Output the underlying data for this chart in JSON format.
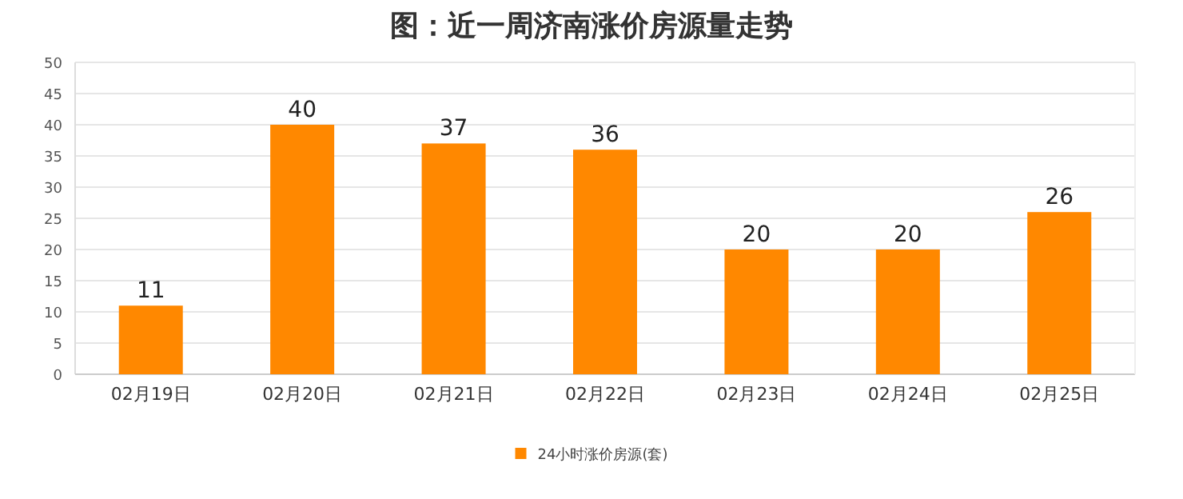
{
  "chart_data": {
    "type": "bar",
    "title": "图：近一周济南涨价房源量走势",
    "categories": [
      "02月19日",
      "02月20日",
      "02月21日",
      "02月22日",
      "02月23日",
      "02月24日",
      "02月25日"
    ],
    "series": [
      {
        "name": "24小时涨价房源(套)",
        "color": "#ff8800",
        "values": [
          11,
          40,
          37,
          36,
          20,
          20,
          26
        ]
      }
    ],
    "ylim": [
      0,
      50
    ],
    "yticks": [
      0,
      5,
      10,
      15,
      20,
      25,
      30,
      35,
      40,
      45,
      50
    ],
    "grid": "y",
    "legend": "bottom",
    "data_labels": true
  }
}
